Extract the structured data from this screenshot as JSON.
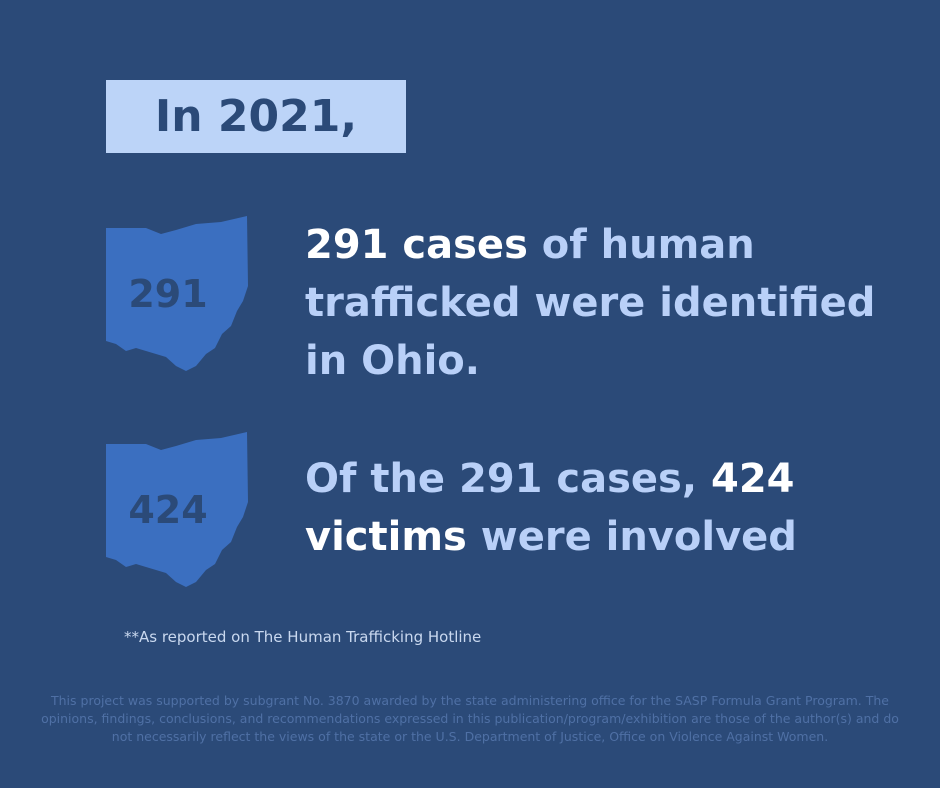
{
  "header": {
    "title": "In 2021,"
  },
  "stats": [
    {
      "badge": "291",
      "parts": [
        {
          "text": "291 cases",
          "highlight": true
        },
        {
          "text": " of human trafficked were identified in Ohio.",
          "highlight": false
        }
      ]
    },
    {
      "badge": "424",
      "parts": [
        {
          "text": "Of the 291 cases, ",
          "highlight": false
        },
        {
          "text": "424 victims",
          "highlight": true
        },
        {
          "text": " were involved",
          "highlight": false
        }
      ]
    }
  ],
  "footnote": "**As reported on The Human Trafficking Hotline",
  "disclaimer": "This project was supported by subgrant No. 3870 awarded by the state administering office for the SASP Formula Grant Program. The opinions, findings, conclusions, and recommendations expressed in this publication/program/exhibition are those of the author(s) and do not necessarily reflect the views of the state or the U.S. Department of Justice, Office on Violence Against Women."
}
